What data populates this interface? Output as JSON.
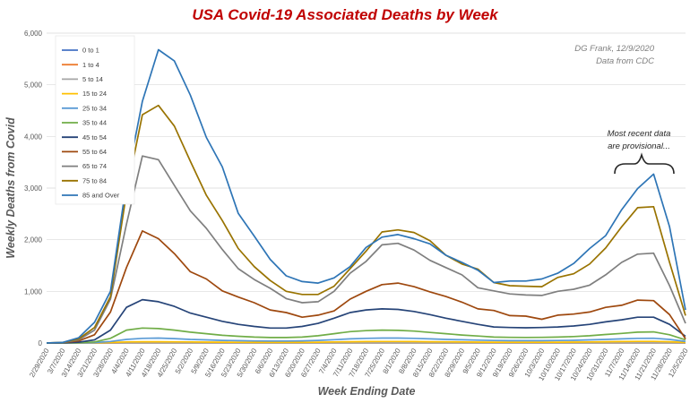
{
  "chart_data": {
    "type": "line",
    "title": "USA Covid-19 Associated Deaths by Week",
    "xlabel": "Week Ending Date",
    "ylabel": "Weekly Deaths from Covid",
    "ylim": [
      0,
      6000
    ],
    "yticks": [
      "0",
      "1,000",
      "2,000",
      "3,000",
      "4,000",
      "5,000",
      "6,000"
    ],
    "grid": true,
    "legend_position": "top-left",
    "note": [
      "DG Frank, 12/9/2020",
      "Data from CDC"
    ],
    "annotation": [
      "Most recent data",
      "are provisional..."
    ],
    "x": [
      "2/29/2020",
      "3/7/2020",
      "3/14/2020",
      "3/21/2020",
      "3/28/2020",
      "4/4/2020",
      "4/11/2020",
      "4/18/2020",
      "4/25/2020",
      "5/2/2020",
      "5/9/2020",
      "5/16/2020",
      "5/23/2020",
      "5/30/2020",
      "6/6/2020",
      "6/13/2020",
      "6/20/2020",
      "6/27/2020",
      "7/4/2020",
      "7/11/2020",
      "7/18/2020",
      "7/25/2020",
      "8/1/2020",
      "8/8/2020",
      "8/15/2020",
      "8/22/2020",
      "8/29/2020",
      "9/5/2020",
      "9/12/2020",
      "9/19/2020",
      "9/26/2020",
      "10/3/2020",
      "10/10/2020",
      "10/17/2020",
      "10/24/2020",
      "10/31/2020",
      "11/7/2020",
      "11/14/2020",
      "11/21/2020",
      "11/28/2020",
      "12/5/2020"
    ],
    "series": [
      {
        "name": "0 to 1",
        "color": "#4472c4",
        "values": [
          0,
          0,
          0,
          0,
          0,
          1,
          1,
          1,
          1,
          1,
          1,
          1,
          1,
          1,
          1,
          1,
          1,
          1,
          1,
          1,
          1,
          1,
          1,
          1,
          1,
          1,
          1,
          1,
          1,
          1,
          1,
          1,
          1,
          1,
          1,
          1,
          1,
          1,
          1,
          1,
          0
        ]
      },
      {
        "name": "1 to 4",
        "color": "#ed7d31",
        "values": [
          0,
          0,
          0,
          0,
          0,
          1,
          1,
          1,
          1,
          1,
          1,
          1,
          1,
          1,
          1,
          1,
          1,
          1,
          1,
          1,
          1,
          1,
          1,
          1,
          1,
          1,
          1,
          1,
          1,
          1,
          1,
          1,
          1,
          1,
          1,
          1,
          1,
          1,
          1,
          1,
          0
        ]
      },
      {
        "name": "5 to 14",
        "color": "#a5a5a5",
        "values": [
          0,
          0,
          0,
          0,
          1,
          2,
          2,
          2,
          2,
          2,
          2,
          1,
          1,
          1,
          1,
          1,
          1,
          1,
          1,
          2,
          2,
          2,
          2,
          2,
          2,
          2,
          2,
          2,
          2,
          2,
          2,
          2,
          2,
          2,
          2,
          3,
          3,
          3,
          3,
          2,
          1
        ]
      },
      {
        "name": "15 to 24",
        "color": "#ffc000",
        "values": [
          0,
          0,
          1,
          3,
          10,
          20,
          25,
          25,
          22,
          20,
          18,
          15,
          14,
          13,
          12,
          12,
          13,
          15,
          20,
          25,
          28,
          30,
          30,
          28,
          25,
          22,
          20,
          18,
          15,
          15,
          15,
          15,
          16,
          18,
          20,
          25,
          28,
          32,
          32,
          25,
          12
        ]
      },
      {
        "name": "25  to 34",
        "color": "#5b9bd5",
        "values": [
          0,
          0,
          2,
          8,
          30,
          70,
          90,
          95,
          85,
          70,
          60,
          50,
          45,
          40,
          38,
          38,
          42,
          50,
          65,
          80,
          90,
          95,
          95,
          90,
          80,
          70,
          62,
          55,
          48,
          45,
          45,
          45,
          48,
          52,
          60,
          70,
          80,
          90,
          92,
          70,
          30
        ]
      },
      {
        "name": "35 to 44",
        "color": "#70ad47",
        "values": [
          0,
          1,
          5,
          20,
          90,
          250,
          290,
          280,
          250,
          210,
          180,
          150,
          130,
          115,
          105,
          105,
          115,
          140,
          180,
          220,
          240,
          250,
          245,
          230,
          205,
          180,
          155,
          135,
          115,
          110,
          108,
          110,
          115,
          125,
          140,
          165,
          185,
          210,
          215,
          160,
          60
        ]
      },
      {
        "name": "45 to 54",
        "color": "#264478",
        "values": [
          0,
          2,
          15,
          60,
          250,
          690,
          840,
          800,
          710,
          580,
          500,
          420,
          360,
          320,
          290,
          290,
          320,
          380,
          480,
          590,
          640,
          660,
          650,
          610,
          550,
          480,
          420,
          360,
          310,
          300,
          295,
          300,
          310,
          330,
          360,
          410,
          450,
          500,
          500,
          360,
          130
        ]
      },
      {
        "name": "55 to 64",
        "color": "#9e480e",
        "values": [
          0,
          5,
          40,
          160,
          600,
          1460,
          2170,
          2020,
          1730,
          1380,
          1240,
          1010,
          890,
          780,
          640,
          590,
          500,
          540,
          620,
          850,
          1000,
          1130,
          1160,
          1090,
          990,
          900,
          790,
          660,
          630,
          530,
          520,
          460,
          540,
          560,
          600,
          690,
          730,
          830,
          820,
          550,
          80
        ]
      },
      {
        "name": "65 to 74",
        "color": "#7f7f7f",
        "values": [
          0,
          8,
          60,
          250,
          850,
          2300,
          3620,
          3550,
          3050,
          2560,
          2220,
          1810,
          1440,
          1230,
          1060,
          860,
          780,
          800,
          1000,
          1350,
          1580,
          1900,
          1930,
          1800,
          1600,
          1460,
          1320,
          1070,
          1010,
          950,
          930,
          920,
          1000,
          1040,
          1120,
          1320,
          1560,
          1720,
          1740,
          1110,
          380
        ]
      },
      {
        "name": "75 to 84",
        "color": "#997300",
        "values": [
          0,
          10,
          80,
          300,
          900,
          2900,
          4420,
          4600,
          4200,
          3520,
          2860,
          2370,
          1830,
          1480,
          1210,
          1000,
          940,
          940,
          1100,
          1440,
          1780,
          2150,
          2190,
          2140,
          1980,
          1700,
          1530,
          1430,
          1170,
          1110,
          1100,
          1090,
          1270,
          1340,
          1530,
          1840,
          2250,
          2620,
          2640,
          1560,
          530
        ]
      },
      {
        "name": "85 and Over",
        "color": "#2e75b6",
        "values": [
          0,
          10,
          100,
          400,
          1000,
          3100,
          4680,
          5680,
          5460,
          4800,
          3980,
          3410,
          2510,
          2070,
          1620,
          1300,
          1190,
          1160,
          1260,
          1480,
          1850,
          2050,
          2100,
          2020,
          1920,
          1700,
          1560,
          1410,
          1170,
          1200,
          1200,
          1240,
          1350,
          1540,
          1830,
          2080,
          2580,
          2990,
          3270,
          2250,
          640
        ]
      }
    ]
  }
}
